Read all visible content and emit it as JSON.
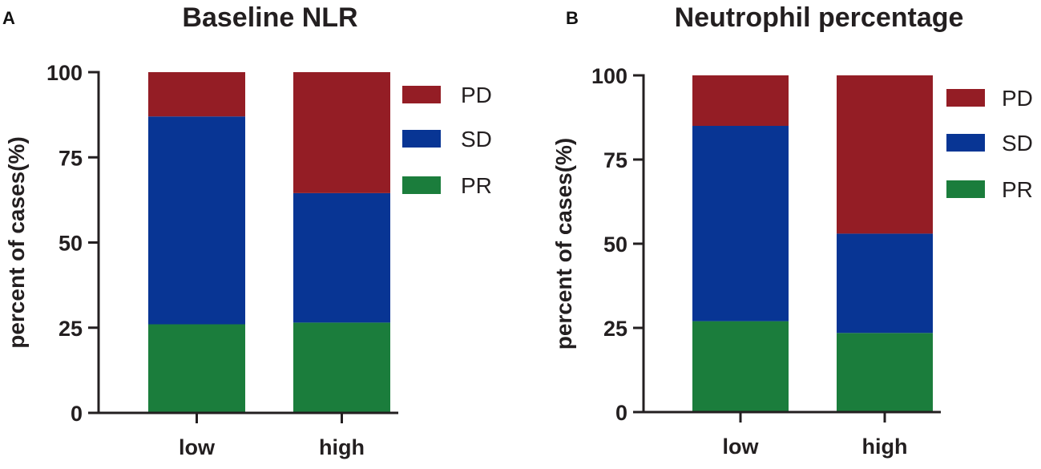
{
  "chart_data": [
    {
      "panel_label": "A",
      "type": "bar",
      "stacked": true,
      "title": "Baseline NLR",
      "xlabel": "",
      "ylabel": "percent of cases(%)",
      "ylim": [
        0,
        100
      ],
      "yticks": [
        "0",
        "25",
        "50",
        "75",
        "100"
      ],
      "categories": [
        "low",
        "high"
      ],
      "series": [
        {
          "name": "PR",
          "color": "#1b7d3c",
          "values": [
            26,
            26.5
          ]
        },
        {
          "name": "SD",
          "color": "#083594",
          "values": [
            61,
            38
          ]
        },
        {
          "name": "PD",
          "color": "#941d25",
          "values": [
            13,
            35.5
          ]
        }
      ],
      "legend": {
        "position": "right",
        "order": [
          "PD",
          "SD",
          "PR"
        ]
      }
    },
    {
      "panel_label": "B",
      "type": "bar",
      "stacked": true,
      "title": "Neutrophil percentage",
      "xlabel": "",
      "ylabel": "percent of cases(%)",
      "ylim": [
        0,
        100
      ],
      "yticks": [
        "0",
        "25",
        "50",
        "75",
        "100"
      ],
      "categories": [
        "low",
        "high"
      ],
      "series": [
        {
          "name": "PR",
          "color": "#1b7d3c",
          "values": [
            27,
            23.5
          ]
        },
        {
          "name": "SD",
          "color": "#083594",
          "values": [
            58,
            29.5
          ]
        },
        {
          "name": "PD",
          "color": "#941d25",
          "values": [
            15,
            47
          ]
        }
      ],
      "legend": {
        "position": "right",
        "order": [
          "PD",
          "SD",
          "PR"
        ]
      }
    }
  ]
}
